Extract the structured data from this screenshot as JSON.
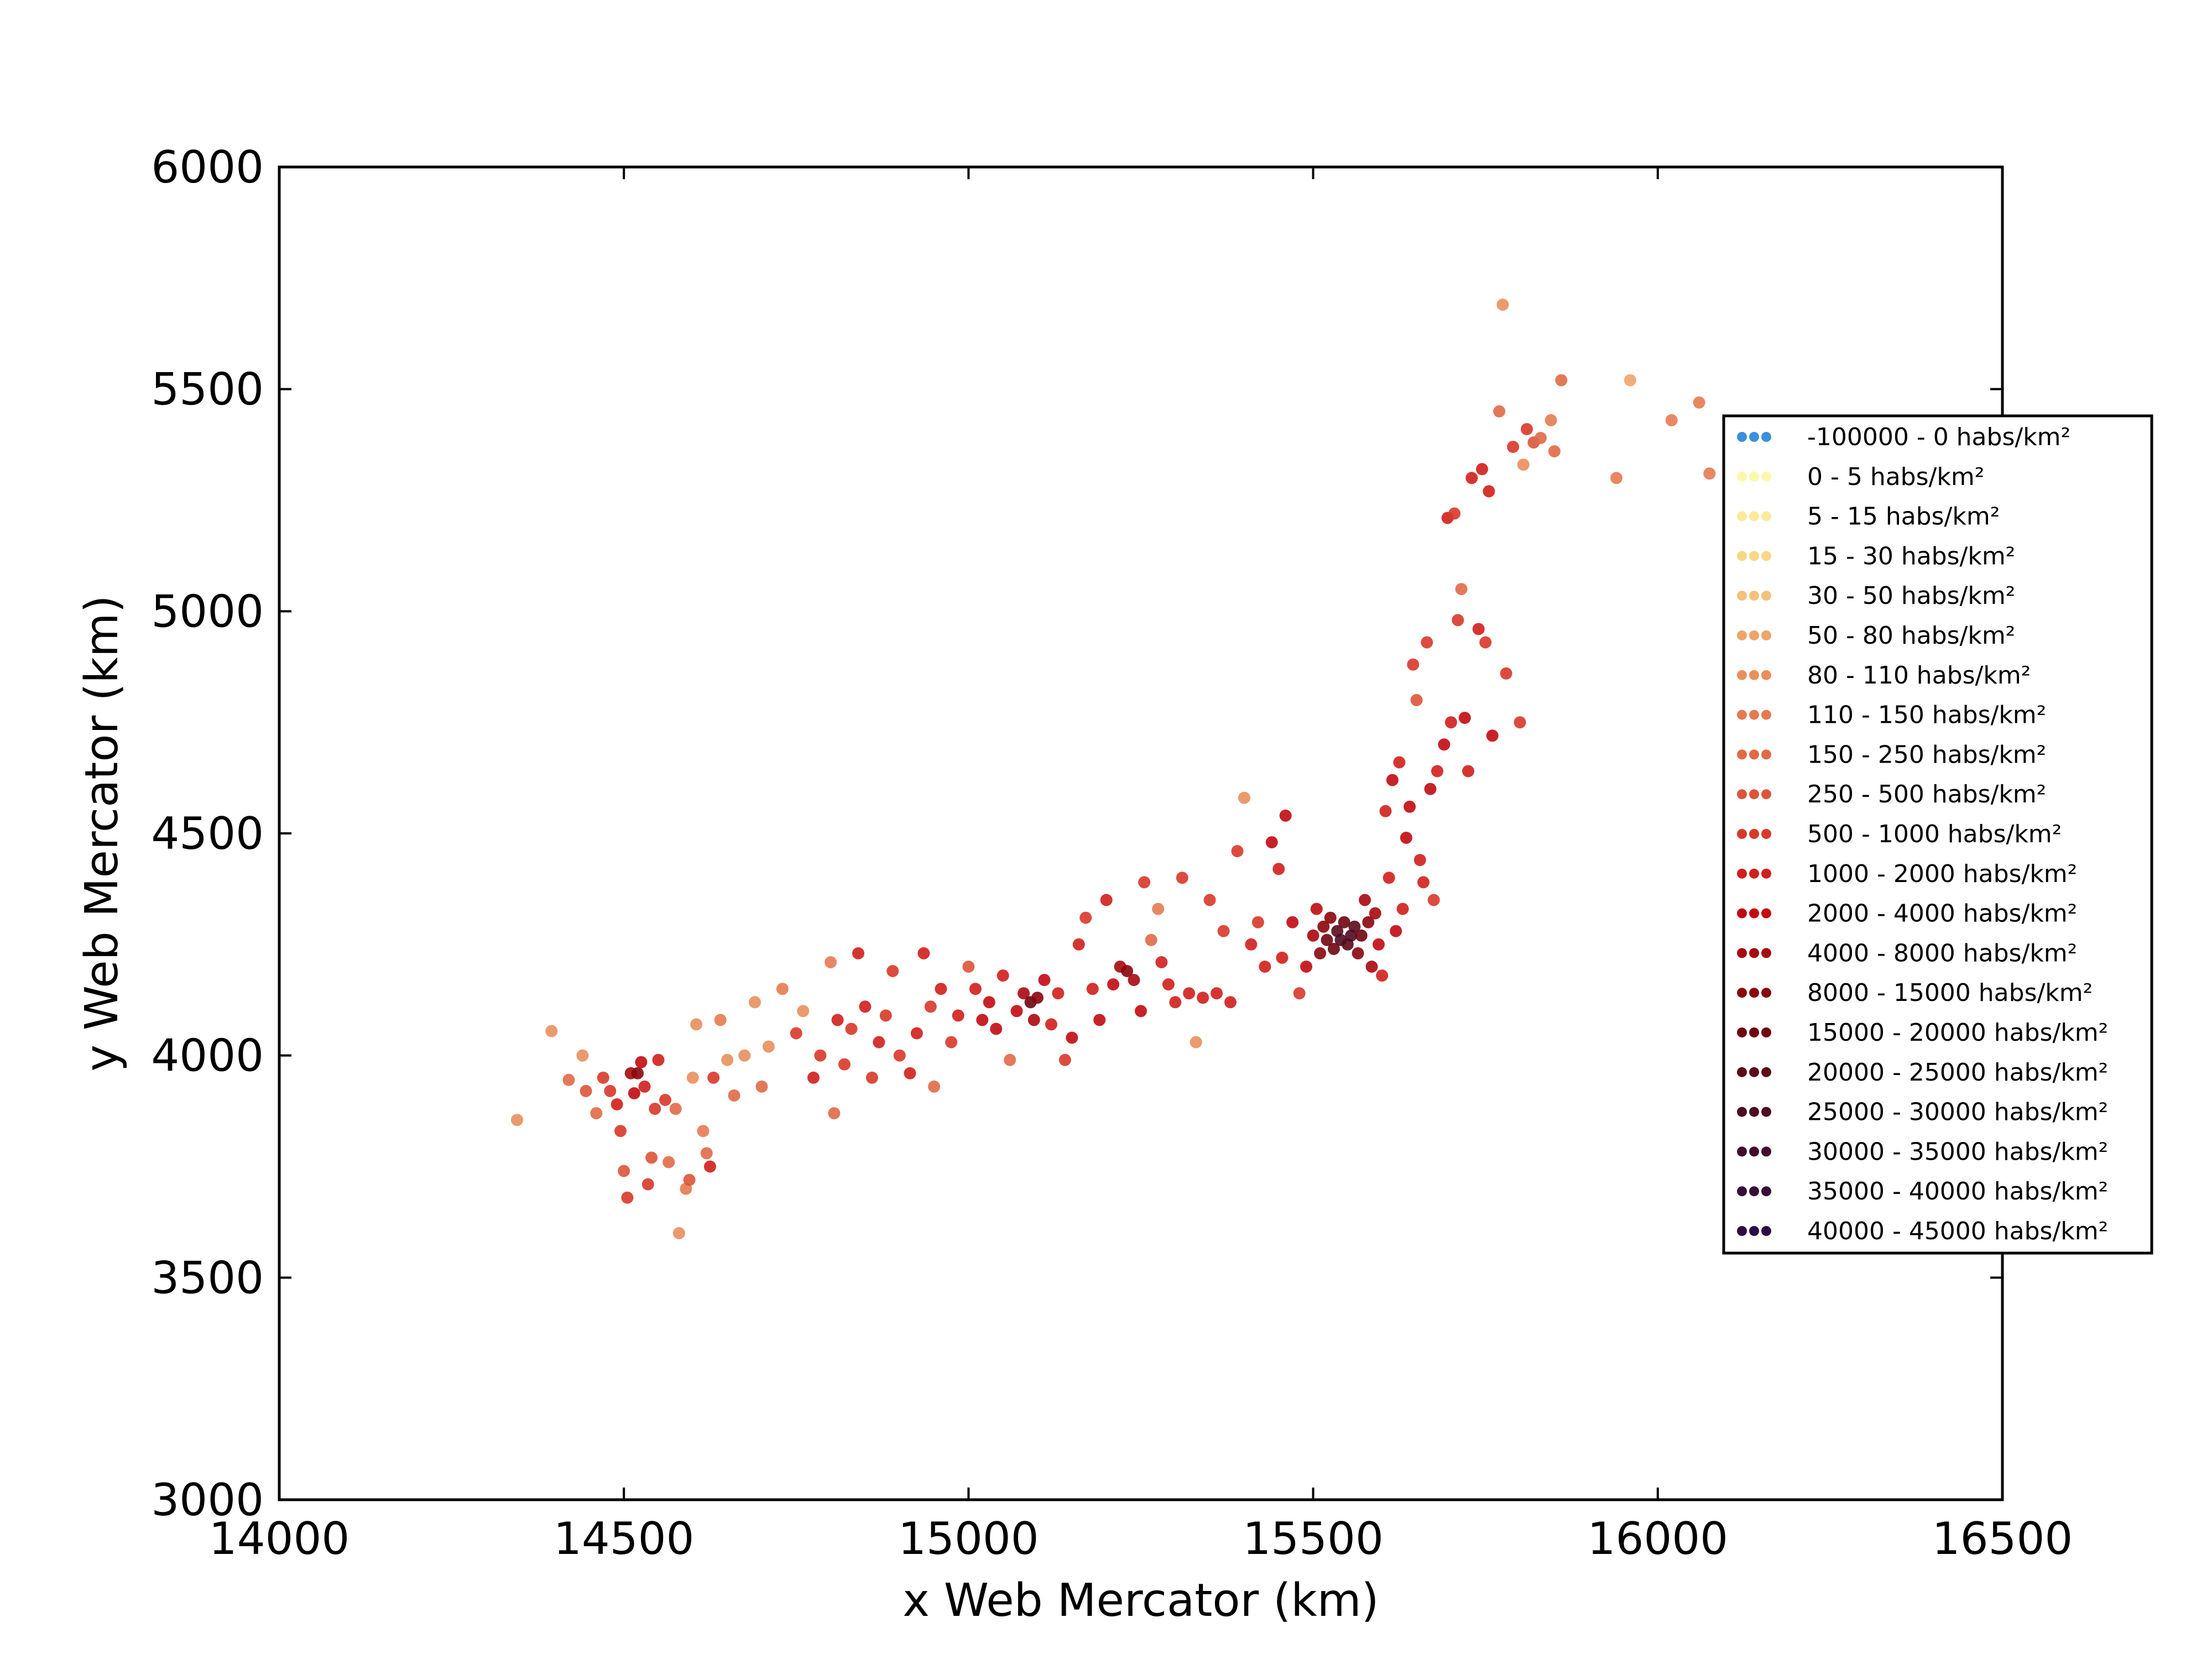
{
  "chart_data": {
    "type": "scatter",
    "title": "",
    "xlabel": "x Web Mercator (km)",
    "ylabel": "y Web Mercator (km)",
    "xlim": [
      14000,
      16500
    ],
    "ylim": [
      3000,
      6000
    ],
    "xticks": [
      "14000",
      "14500",
      "15000",
      "15500",
      "16000",
      "16500"
    ],
    "yticks": [
      "3000",
      "3500",
      "4000",
      "4500",
      "5000",
      "5500",
      "6000"
    ],
    "grid": false,
    "legend_position": "right",
    "legend": [
      {
        "label": "-100000 - 0 habs/km²",
        "color": "#3b8fdc"
      },
      {
        "label": "0 - 5 habs/km²",
        "color": "#fff7a8"
      },
      {
        "label": "5 - 15 habs/km²",
        "color": "#fde99a"
      },
      {
        "label": "15 - 30 habs/km²",
        "color": "#f9d788"
      },
      {
        "label": "30 - 50 habs/km²",
        "color": "#f3c17a"
      },
      {
        "label": "50 - 80 habs/km²",
        "color": "#eea46a"
      },
      {
        "label": "80 - 110 habs/km²",
        "color": "#e98f5c"
      },
      {
        "label": "110 - 150 habs/km²",
        "color": "#e57b51"
      },
      {
        "label": "150 - 250 habs/km²",
        "color": "#e06a47"
      },
      {
        "label": "250 - 500 habs/km²",
        "color": "#dc553a"
      },
      {
        "label": "500 - 1000 habs/km²",
        "color": "#d7382a"
      },
      {
        "label": "1000 - 2000 habs/km²",
        "color": "#d01f1c"
      },
      {
        "label": "2000 - 4000 habs/km²",
        "color": "#c20a12"
      },
      {
        "label": "4000 - 8000 habs/km²",
        "color": "#a8080f"
      },
      {
        "label": "8000 - 15000 habs/km²",
        "color": "#8a060d"
      },
      {
        "label": "15000 - 20000 habs/km²",
        "color": "#6e0610"
      },
      {
        "label": "20000 - 25000 habs/km²",
        "color": "#5c0a18"
      },
      {
        "label": "25000 - 30000 habs/km²",
        "color": "#4d0c22"
      },
      {
        "label": "30000 - 35000 habs/km²",
        "color": "#420d2c"
      },
      {
        "label": "35000 - 40000 habs/km²",
        "color": "#380d38"
      },
      {
        "label": "40000 - 45000 habs/km²",
        "color": "#2f0b45"
      }
    ],
    "points": [
      [
        14345,
        3855,
        6
      ],
      [
        14395,
        4055,
        6
      ],
      [
        14420,
        3945,
        8
      ],
      [
        14440,
        4000,
        6
      ],
      [
        14445,
        3920,
        9
      ],
      [
        14460,
        3870,
        8
      ],
      [
        14470,
        3950,
        10
      ],
      [
        14480,
        3920,
        10
      ],
      [
        14490,
        3890,
        11
      ],
      [
        14495,
        3830,
        10
      ],
      [
        14500,
        3740,
        9
      ],
      [
        14505,
        3680,
        10
      ],
      [
        14510,
        3960,
        13
      ],
      [
        14515,
        3915,
        12
      ],
      [
        14520,
        3960,
        14
      ],
      [
        14525,
        3985,
        12
      ],
      [
        14530,
        3930,
        11
      ],
      [
        14535,
        3710,
        10
      ],
      [
        14540,
        3770,
        9
      ],
      [
        14545,
        3880,
        10
      ],
      [
        14550,
        3990,
        11
      ],
      [
        14560,
        3900,
        10
      ],
      [
        14565,
        3760,
        8
      ],
      [
        14575,
        3880,
        8
      ],
      [
        14580,
        3600,
        6
      ],
      [
        14590,
        3700,
        7
      ],
      [
        14595,
        3720,
        9
      ],
      [
        14600,
        3950,
        6
      ],
      [
        14605,
        4070,
        6
      ],
      [
        14615,
        3830,
        7
      ],
      [
        14620,
        3780,
        8
      ],
      [
        14625,
        3750,
        11
      ],
      [
        14630,
        3950,
        10
      ],
      [
        14640,
        4080,
        7
      ],
      [
        14650,
        3990,
        6
      ],
      [
        14660,
        3910,
        8
      ],
      [
        14675,
        4000,
        6
      ],
      [
        14690,
        4120,
        6
      ],
      [
        14700,
        3930,
        8
      ],
      [
        14710,
        4020,
        6
      ],
      [
        14730,
        4150,
        7
      ],
      [
        14750,
        4050,
        10
      ],
      [
        14760,
        4100,
        6
      ],
      [
        14775,
        3950,
        11
      ],
      [
        14785,
        4000,
        10
      ],
      [
        14800,
        4210,
        7
      ],
      [
        14805,
        3870,
        8
      ],
      [
        14810,
        4080,
        11
      ],
      [
        14820,
        3980,
        10
      ],
      [
        14830,
        4060,
        10
      ],
      [
        14840,
        4230,
        11
      ],
      [
        14850,
        4110,
        11
      ],
      [
        14860,
        3950,
        10
      ],
      [
        14870,
        4030,
        11
      ],
      [
        14880,
        4090,
        10
      ],
      [
        14890,
        4190,
        10
      ],
      [
        14900,
        4000,
        10
      ],
      [
        14915,
        3960,
        11
      ],
      [
        14925,
        4050,
        11
      ],
      [
        14935,
        4230,
        11
      ],
      [
        14945,
        4110,
        10
      ],
      [
        14950,
        3930,
        8
      ],
      [
        14960,
        4150,
        11
      ],
      [
        14975,
        4030,
        10
      ],
      [
        14985,
        4090,
        11
      ],
      [
        15000,
        4200,
        9
      ],
      [
        15010,
        4150,
        11
      ],
      [
        15020,
        4080,
        12
      ],
      [
        15030,
        4120,
        12
      ],
      [
        15040,
        4060,
        12
      ],
      [
        15050,
        4180,
        11
      ],
      [
        15060,
        3990,
        8
      ],
      [
        15070,
        4100,
        12
      ],
      [
        15080,
        4140,
        13
      ],
      [
        15090,
        4120,
        15
      ],
      [
        15095,
        4080,
        13
      ],
      [
        15100,
        4130,
        14
      ],
      [
        15110,
        4170,
        12
      ],
      [
        15120,
        4070,
        11
      ],
      [
        15130,
        4140,
        11
      ],
      [
        15140,
        3990,
        10
      ],
      [
        15150,
        4040,
        12
      ],
      [
        15160,
        4250,
        11
      ],
      [
        15170,
        4310,
        10
      ],
      [
        15180,
        4150,
        11
      ],
      [
        15190,
        4080,
        12
      ],
      [
        15200,
        4350,
        11
      ],
      [
        15210,
        4160,
        12
      ],
      [
        15220,
        4200,
        13
      ],
      [
        15230,
        4190,
        14
      ],
      [
        15240,
        4170,
        13
      ],
      [
        15250,
        4100,
        12
      ],
      [
        15255,
        4390,
        10
      ],
      [
        15265,
        4260,
        8
      ],
      [
        15275,
        4330,
        7
      ],
      [
        15280,
        4210,
        11
      ],
      [
        15290,
        4160,
        11
      ],
      [
        15300,
        4120,
        11
      ],
      [
        15310,
        4400,
        10
      ],
      [
        15320,
        4140,
        11
      ],
      [
        15330,
        4030,
        6
      ],
      [
        15340,
        4130,
        11
      ],
      [
        15350,
        4350,
        10
      ],
      [
        15360,
        4140,
        11
      ],
      [
        15370,
        4280,
        10
      ],
      [
        15380,
        4120,
        11
      ],
      [
        15390,
        4460,
        10
      ],
      [
        15400,
        4580,
        6
      ],
      [
        15410,
        4250,
        11
      ],
      [
        15420,
        4300,
        10
      ],
      [
        15430,
        4200,
        11
      ],
      [
        15440,
        4480,
        12
      ],
      [
        15450,
        4420,
        11
      ],
      [
        15455,
        4220,
        11
      ],
      [
        15460,
        4540,
        12
      ],
      [
        15470,
        4300,
        12
      ],
      [
        15480,
        4140,
        10
      ],
      [
        15490,
        4200,
        12
      ],
      [
        15500,
        4270,
        13
      ],
      [
        15505,
        4330,
        12
      ],
      [
        15510,
        4230,
        14
      ],
      [
        15515,
        4290,
        14
      ],
      [
        15520,
        4260,
        15
      ],
      [
        15525,
        4310,
        14
      ],
      [
        15530,
        4240,
        15
      ],
      [
        15535,
        4280,
        16
      ],
      [
        15540,
        4260,
        17
      ],
      [
        15545,
        4300,
        15
      ],
      [
        15550,
        4250,
        16
      ],
      [
        15555,
        4270,
        17
      ],
      [
        15560,
        4290,
        16
      ],
      [
        15565,
        4230,
        14
      ],
      [
        15570,
        4270,
        15
      ],
      [
        15575,
        4350,
        13
      ],
      [
        15580,
        4300,
        14
      ],
      [
        15585,
        4200,
        13
      ],
      [
        15590,
        4320,
        13
      ],
      [
        15595,
        4250,
        12
      ],
      [
        15600,
        4180,
        11
      ],
      [
        15605,
        4550,
        11
      ],
      [
        15610,
        4400,
        11
      ],
      [
        15615,
        4620,
        12
      ],
      [
        15620,
        4280,
        12
      ],
      [
        15625,
        4660,
        11
      ],
      [
        15630,
        4330,
        11
      ],
      [
        15635,
        4490,
        12
      ],
      [
        15640,
        4560,
        12
      ],
      [
        15645,
        4880,
        10
      ],
      [
        15650,
        4800,
        9
      ],
      [
        15655,
        4440,
        11
      ],
      [
        15660,
        4390,
        11
      ],
      [
        15665,
        4930,
        10
      ],
      [
        15670,
        4600,
        12
      ],
      [
        15675,
        4350,
        10
      ],
      [
        15680,
        4640,
        11
      ],
      [
        15690,
        4700,
        12
      ],
      [
        15695,
        5210,
        11
      ],
      [
        15700,
        4750,
        11
      ],
      [
        15705,
        5220,
        10
      ],
      [
        15710,
        4980,
        10
      ],
      [
        15715,
        5050,
        8
      ],
      [
        15720,
        4760,
        12
      ],
      [
        15725,
        4640,
        11
      ],
      [
        15730,
        5300,
        11
      ],
      [
        15740,
        4960,
        11
      ],
      [
        15745,
        5320,
        11
      ],
      [
        15750,
        4930,
        10
      ],
      [
        15755,
        5270,
        11
      ],
      [
        15760,
        4720,
        12
      ],
      [
        15770,
        5450,
        8
      ],
      [
        15775,
        5690,
        6
      ],
      [
        15780,
        4860,
        10
      ],
      [
        15790,
        5370,
        10
      ],
      [
        15800,
        4750,
        10
      ],
      [
        15805,
        5330,
        6
      ],
      [
        15810,
        5410,
        10
      ],
      [
        15820,
        5380,
        9
      ],
      [
        15830,
        5390,
        8
      ],
      [
        15845,
        5430,
        7
      ],
      [
        15850,
        5360,
        8
      ],
      [
        15860,
        5520,
        8
      ],
      [
        15940,
        5300,
        7
      ],
      [
        15960,
        5520,
        5
      ],
      [
        16020,
        5430,
        7
      ],
      [
        16060,
        5470,
        7
      ],
      [
        16075,
        5310,
        7
      ]
    ]
  }
}
